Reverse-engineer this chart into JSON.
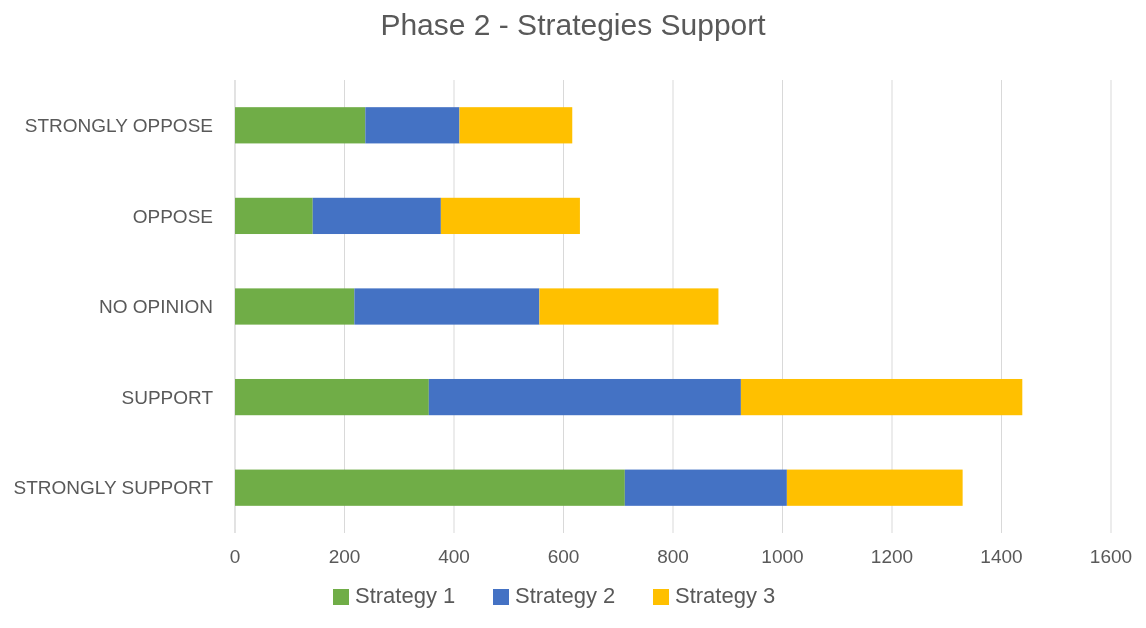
{
  "chart_data": {
    "type": "bar",
    "title": "Phase 2 - Strategies Support",
    "orientation": "horizontal",
    "stacked": true,
    "categories": [
      "STRONGLY OPPOSE",
      "OPPOSE",
      "NO OPINION",
      "SUPPORT",
      "STRONGLY SUPPORT"
    ],
    "series": [
      {
        "name": "Strategy 1",
        "color": "#70ad47",
        "values": [
          238,
          142,
          218,
          354,
          712
        ]
      },
      {
        "name": "Strategy 2",
        "color": "#4472c4",
        "values": [
          172,
          234,
          338,
          570,
          296
        ]
      },
      {
        "name": "Strategy 3",
        "color": "#ffc000",
        "values": [
          206,
          254,
          327,
          514,
          321
        ]
      }
    ],
    "xlim": [
      0,
      1600
    ],
    "xticks": [
      0,
      200,
      400,
      600,
      800,
      1000,
      1200,
      1400,
      1600
    ],
    "grid": "x",
    "legend": "bottom"
  }
}
